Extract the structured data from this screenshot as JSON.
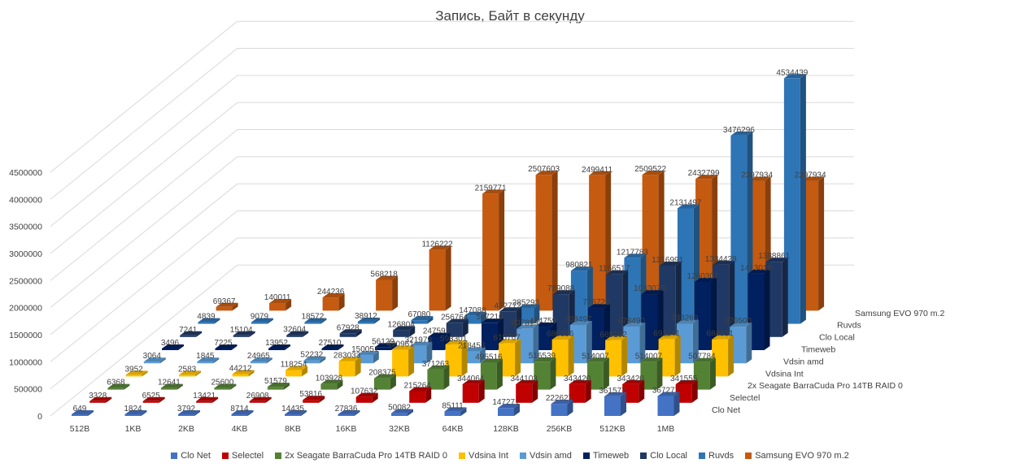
{
  "chart_data": {
    "type": "bar",
    "variant": "3d-column",
    "title": "Запись, Байт в секунду",
    "xlabel": "",
    "ylabel": "",
    "ylim": [
      0,
      4500000
    ],
    "yticks": [
      "0",
      "500000",
      "1000000",
      "1500000",
      "2000000",
      "2500000",
      "3000000",
      "3500000",
      "4000000",
      "4500000"
    ],
    "grid": true,
    "legend_position": "bottom",
    "categories": [
      "512B",
      "1KB",
      "2KB",
      "4KB",
      "8KB",
      "16KB",
      "32KB",
      "64KB",
      "128KB",
      "256KB",
      "512KB",
      "1MB"
    ],
    "series": [
      {
        "name": "Clo Net",
        "color": "#4472c4",
        "values": [
          649,
          1824,
          3792,
          8714,
          14435,
          27836,
          50082,
          85111,
          147271,
          222627,
          361577,
          367277
        ]
      },
      {
        "name": "Selectel",
        "color": "#c00000",
        "values": [
          3328,
          6525,
          13421,
          26908,
          53816,
          107632,
          215264,
          344064,
          344103,
          343420,
          343420,
          341555
        ]
      },
      {
        "name": "2x Seagate BarraCuda Pro 14TB RAID 0",
        "color": "#548235",
        "values": [
          6368,
          12641,
          25600,
          51579,
          103928,
          208375,
          371263,
          495516,
          516539,
          514007,
          514007,
          507784
        ]
      },
      {
        "name": "Vdsina Int",
        "color": "#ffc000",
        "values": [
          3952,
          2583,
          44212,
          118254,
          283033,
          490961,
          593301,
          615767,
          680696,
          669102,
          691141,
          684931
        ]
      },
      {
        "name": "Vdsin amd",
        "color": "#5b9bd5",
        "values": [
          3064,
          1845,
          24965,
          52232,
          150051,
          321979,
          218453,
          637819,
          708497,
          678490,
          733269,
          676500
        ]
      },
      {
        "name": "Timeweb",
        "color": "#002060",
        "values": [
          3496,
          7225,
          13952,
          27510,
          56129,
          247591,
          507210,
          434759,
          776722,
          1033079,
          1260307,
          1413018
        ]
      },
      {
        "name": "Clo Local",
        "color": "#203864",
        "values": [
          7241,
          15104,
          32604,
          67928,
          126804,
          256764,
          472772,
          789088,
          1156517,
          1316991,
          1334428,
          1388861
        ]
      },
      {
        "name": "Ruvds",
        "color": "#2e75b6",
        "values": [
          4839,
          9079,
          18572,
          38912,
          67080,
          147088,
          285293,
          980821,
          1217783,
          2131497,
          3476296,
          4534439
        ]
      },
      {
        "name": "Samsung EVO 970 m.2",
        "color": "#c55a11",
        "values": [
          69367,
          140011,
          244236,
          568218,
          1126222,
          2159771,
          2507603,
          2499411,
          2509522,
          2432799,
          2397934,
          2397934
        ]
      }
    ]
  }
}
